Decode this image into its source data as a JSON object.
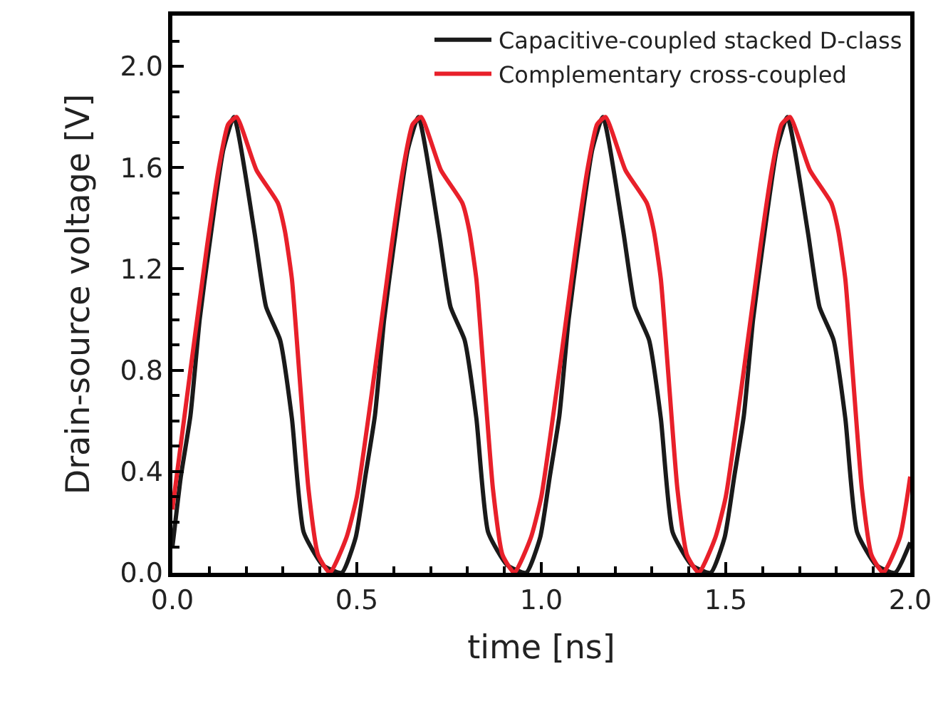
{
  "chart_data": {
    "type": "line",
    "xlabel": "time [ns]",
    "ylabel": "Drain-source voltage [V]",
    "xlim": [
      0,
      2
    ],
    "xticks": [
      {
        "value": 0,
        "label": "0.0"
      },
      0.5,
      {
        "value": 1,
        "label": "1.0"
      },
      1.5,
      {
        "value": 2,
        "label": "2.0"
      }
    ],
    "ylim": [
      0,
      2.2
    ],
    "yticks": [
      {
        "value": 0,
        "label": "0.0"
      },
      0.4,
      0.8,
      1.2,
      1.6,
      {
        "value": 2,
        "label": "2.0"
      }
    ],
    "legend": "top right",
    "marker": "none",
    "line_style": "solid",
    "series": [
      {
        "name": "Capacitive-coupled stacked D-class",
        "color": "#1a1a1a",
        "x": [
          0,
          0.023,
          0.049,
          0.074,
          0.1,
          0.138,
          0.167,
          0.222,
          0.254,
          0.292,
          0.324,
          0.356,
          0.408,
          0.459,
          0.497,
          0.523,
          0.549,
          0.574,
          0.6,
          0.638,
          0.667,
          0.722,
          0.754,
          0.792,
          0.824,
          0.856,
          0.908,
          0.959,
          0.997,
          1.023,
          1.049,
          1.074,
          1.1,
          1.138,
          1.167,
          1.222,
          1.254,
          1.292,
          1.324,
          1.356,
          1.408,
          1.459,
          1.497,
          1.523,
          1.549,
          1.574,
          1.6,
          1.638,
          1.667,
          1.722,
          1.754,
          1.792,
          1.824,
          1.856,
          1.908,
          1.959,
          2.0
        ],
        "values": [
          0.1,
          0.38,
          0.62,
          1.0,
          1.29,
          1.67,
          1.8,
          1.35,
          1.05,
          0.92,
          0.61,
          0.16,
          0.03,
          0,
          0.14,
          0.38,
          0.62,
          1.0,
          1.29,
          1.67,
          1.8,
          1.35,
          1.05,
          0.92,
          0.61,
          0.16,
          0.03,
          0,
          0.14,
          0.38,
          0.62,
          1.0,
          1.29,
          1.67,
          1.8,
          1.35,
          1.05,
          0.92,
          0.61,
          0.16,
          0.03,
          0,
          0.14,
          0.38,
          0.62,
          1.0,
          1.29,
          1.67,
          1.8,
          1.35,
          1.05,
          0.92,
          0.61,
          0.16,
          0.03,
          0,
          0.12
        ]
      },
      {
        "name": "Complementary cross-coupled",
        "color": "#e8202a",
        "x": [
          0,
          0.049,
          0.094,
          0.126,
          0.151,
          0.174,
          0.228,
          0.286,
          0.305,
          0.324,
          0.344,
          0.369,
          0.395,
          0.427,
          0.472,
          0.5,
          0.549,
          0.594,
          0.626,
          0.651,
          0.674,
          0.728,
          0.786,
          0.805,
          0.824,
          0.844,
          0.869,
          0.895,
          0.927,
          0.972,
          1.0,
          1.049,
          1.094,
          1.126,
          1.151,
          1.174,
          1.228,
          1.286,
          1.305,
          1.324,
          1.344,
          1.369,
          1.395,
          1.427,
          1.472,
          1.5,
          1.549,
          1.594,
          1.626,
          1.651,
          1.674,
          1.728,
          1.786,
          1.805,
          1.824,
          1.844,
          1.869,
          1.895,
          1.927,
          1.972,
          2.0
        ],
        "values": [
          0.25,
          0.8,
          1.29,
          1.6,
          1.77,
          1.8,
          1.59,
          1.46,
          1.35,
          1.16,
          0.79,
          0.33,
          0.07,
          0,
          0.14,
          0.3,
          0.8,
          1.29,
          1.6,
          1.77,
          1.8,
          1.59,
          1.46,
          1.35,
          1.16,
          0.79,
          0.33,
          0.07,
          0,
          0.14,
          0.3,
          0.8,
          1.29,
          1.6,
          1.77,
          1.8,
          1.59,
          1.46,
          1.35,
          1.16,
          0.79,
          0.33,
          0.07,
          0,
          0.14,
          0.3,
          0.8,
          1.29,
          1.6,
          1.77,
          1.8,
          1.59,
          1.46,
          1.35,
          1.16,
          0.79,
          0.33,
          0.07,
          0,
          0.14,
          0.38
        ]
      }
    ]
  }
}
